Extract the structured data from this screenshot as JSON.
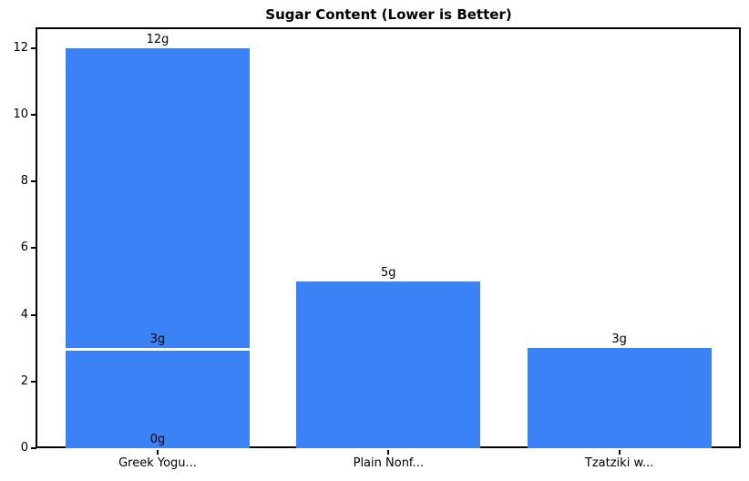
{
  "chart_data": {
    "type": "bar",
    "title": "Sugar Content (Lower is Better)",
    "categories": [
      "Greek Yogu...",
      "Plain Nonf...",
      "Tzatziki w..."
    ],
    "values_per_category": [
      [
        12,
        3,
        0
      ],
      [
        5
      ],
      [
        3
      ]
    ],
    "bar_labels_per_category": [
      [
        "12g",
        "3g",
        "0g"
      ],
      [
        "5g"
      ],
      [
        "3g"
      ]
    ],
    "yticks": [
      0,
      2,
      4,
      6,
      8,
      10,
      12
    ],
    "ylim": [
      0,
      12.6
    ],
    "xlabel": "",
    "ylabel": "",
    "grid": false,
    "legend": "none",
    "bar_color": "#3b82f6",
    "bar_edge_color": "#ffffff",
    "axis_color": "#000000",
    "text_color": "#000000",
    "background_color": "#ffffff"
  }
}
